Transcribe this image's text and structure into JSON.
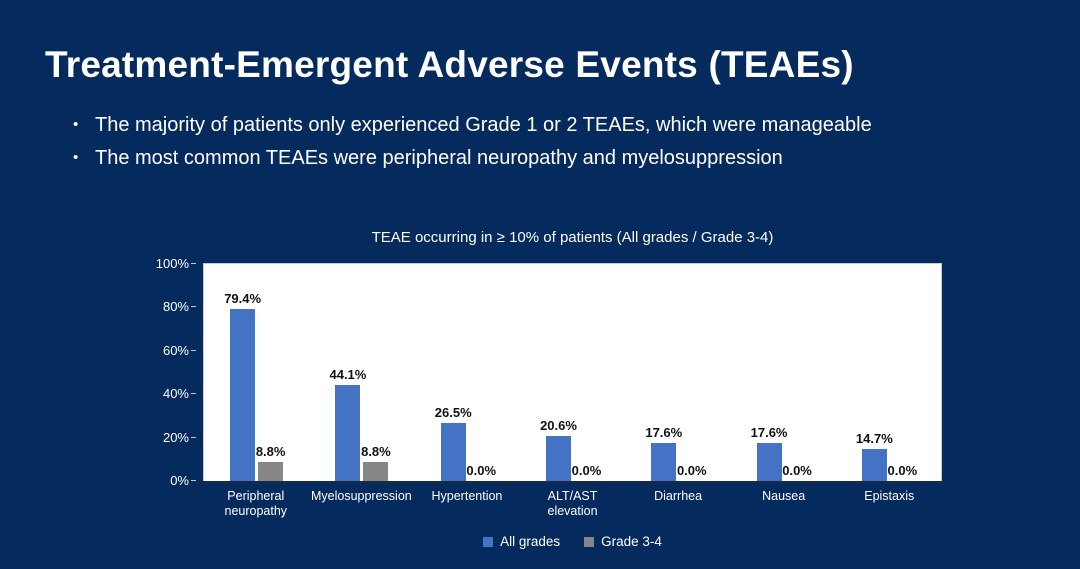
{
  "slide": {
    "title": "Treatment-Emergent Adverse Events (TEAEs)",
    "bullets": [
      "The majority of patients only experienced Grade 1 or 2 TEAEs, which were manageable",
      "The most common TEAEs were peripheral neuropathy and myelosuppression"
    ],
    "bullet_marker": "•"
  },
  "chart_data": {
    "type": "bar",
    "title": "TEAE occurring in ≥ 10% of patients (All grades / Grade 3-4)",
    "categories": [
      "Peripheral neuropathy",
      "Myelosuppression",
      "Hypertention",
      "ALT/AST elevation",
      "Diarrhea",
      "Nausea",
      "Epistaxis"
    ],
    "series": [
      {
        "name": "All grades",
        "color": "#4472c4",
        "values": [
          79.4,
          44.1,
          26.5,
          20.6,
          17.6,
          17.6,
          14.7
        ]
      },
      {
        "name": "Grade 3-4",
        "color": "#878787",
        "values": [
          8.8,
          8.8,
          0.0,
          0.0,
          0.0,
          0.0,
          0.0
        ]
      }
    ],
    "data_labels": [
      [
        "79.4%",
        "44.1%",
        "26.5%",
        "20.6%",
        "17.6%",
        "17.6%",
        "14.7%"
      ],
      [
        "8.8%",
        "8.8%",
        "0.0%",
        "0.0%",
        "0.0%",
        "0.0%",
        "0.0%"
      ]
    ],
    "xlabel": "",
    "ylabel": "",
    "ylim": [
      0,
      100
    ],
    "yticks": [
      "0%",
      "20%",
      "40%",
      "60%",
      "80%",
      "100%"
    ],
    "grid": false,
    "legend_position": "bottom"
  },
  "colors": {
    "background": "#052a5e",
    "text": "#ffffff",
    "plot_background": "#ffffff",
    "data_label": "#111111",
    "axis_line": "#14294e"
  }
}
